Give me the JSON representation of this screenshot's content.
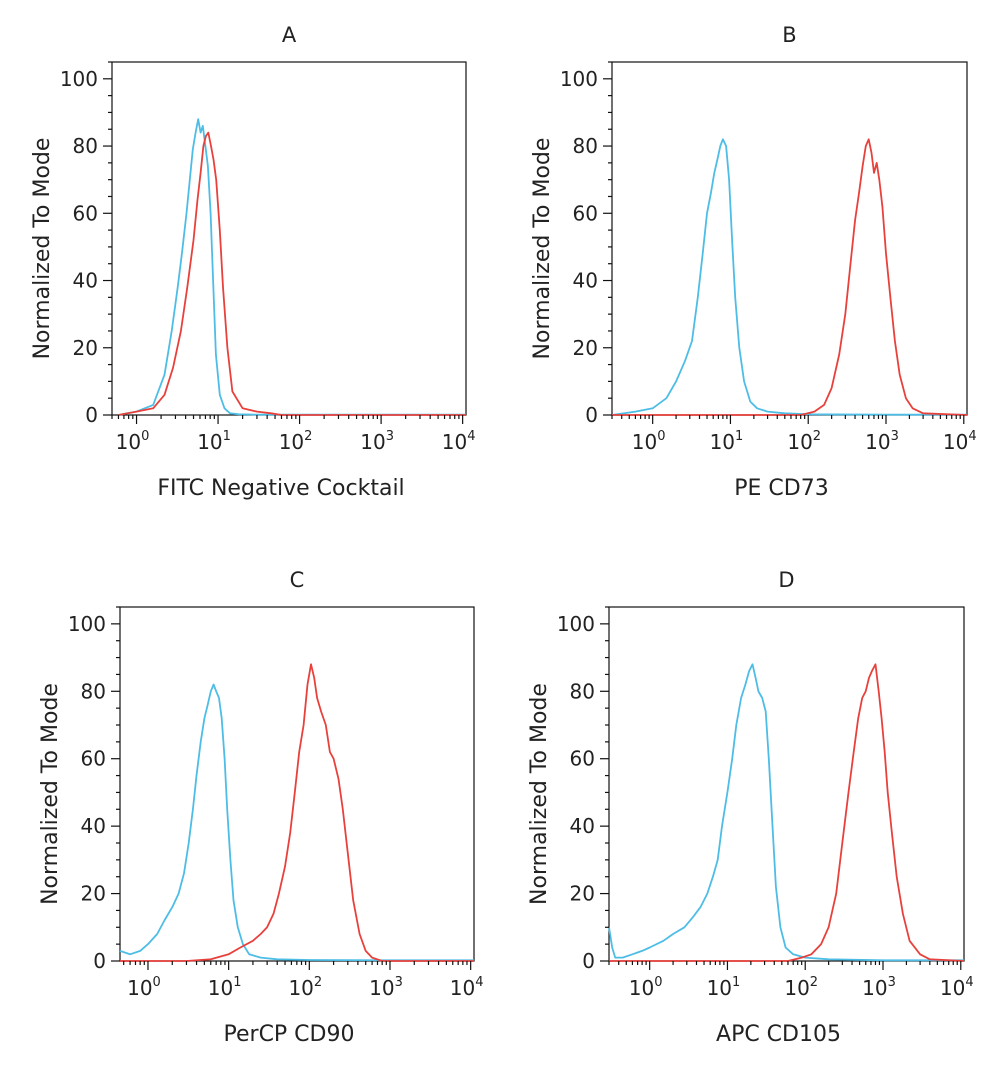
{
  "chart_data": [
    {
      "type": "line",
      "title": "A",
      "xlabel": "FITC Negative Cocktail",
      "ylabel": "Normalized To Mode",
      "xscale": "log",
      "xlim": [
        0.5,
        11000
      ],
      "ylim": [
        0,
        105
      ],
      "xticks": [
        {
          "base": "10",
          "exp": "0",
          "value": 1
        },
        {
          "base": "10",
          "exp": "1",
          "value": 10
        },
        {
          "base": "10",
          "exp": "2",
          "value": 100
        },
        {
          "base": "10",
          "exp": "3",
          "value": 1000
        },
        {
          "base": "10",
          "exp": "4",
          "value": 10000
        }
      ],
      "yticks": [
        0,
        20,
        40,
        60,
        80,
        100
      ],
      "grid": false,
      "series": [
        {
          "color": "#4dbde6",
          "x": [
            0.6,
            1.0,
            1.6,
            2.2,
            2.7,
            3.2,
            3.6,
            4.1,
            4.5,
            4.9,
            5.3,
            5.7,
            6.1,
            6.5,
            7.0,
            7.5,
            8.1,
            8.7,
            9.4,
            10.5,
            12,
            14,
            18,
            30,
            100,
            1000,
            11000
          ],
          "y": [
            0,
            1,
            3,
            12,
            25,
            38,
            48,
            60,
            70,
            79,
            84,
            88,
            84,
            86,
            80,
            74,
            60,
            40,
            18,
            6,
            2,
            0.5,
            0.2,
            0.1,
            0.1,
            0.1,
            0.1
          ]
        },
        {
          "color": "#e8413c",
          "x": [
            0.6,
            1.0,
            1.6,
            2.2,
            2.8,
            3.5,
            4.2,
            5.0,
            5.6,
            6.1,
            6.6,
            7.1,
            7.6,
            8.2,
            8.8,
            9.5,
            10.5,
            11.5,
            13,
            15,
            20,
            30,
            45,
            60,
            100,
            11000
          ],
          "y": [
            0,
            1,
            2,
            6,
            14,
            25,
            38,
            52,
            64,
            72,
            80,
            83,
            84,
            80,
            76,
            70,
            55,
            38,
            20,
            7,
            2,
            1,
            0.5,
            0,
            0,
            0
          ]
        }
      ]
    },
    {
      "type": "line",
      "title": "B",
      "xlabel": "PE CD73",
      "ylabel": "Normalized To Mode",
      "xscale": "log",
      "xlim": [
        0.3,
        11000
      ],
      "ylim": [
        0,
        105
      ],
      "xticks": [
        {
          "base": "10",
          "exp": "0",
          "value": 1
        },
        {
          "base": "10",
          "exp": "1",
          "value": 10
        },
        {
          "base": "10",
          "exp": "2",
          "value": 100
        },
        {
          "base": "10",
          "exp": "3",
          "value": 1000
        },
        {
          "base": "10",
          "exp": "4",
          "value": 10000
        }
      ],
      "yticks": [
        0,
        20,
        40,
        60,
        80,
        100
      ],
      "grid": false,
      "series": [
        {
          "color": "#4dbde6",
          "x": [
            0.3,
            0.6,
            1.0,
            1.5,
            2.0,
            2.6,
            3.2,
            3.8,
            4.4,
            5.0,
            5.6,
            6.2,
            6.8,
            7.4,
            8.0,
            8.8,
            9.6,
            10.5,
            11.5,
            13,
            15,
            18,
            22,
            30,
            50,
            100,
            1000,
            11000
          ],
          "y": [
            0,
            1,
            2,
            5,
            10,
            16,
            22,
            35,
            48,
            60,
            66,
            72,
            76,
            80,
            82,
            80,
            70,
            52,
            35,
            20,
            10,
            4,
            2,
            1,
            0.5,
            0.2,
            0.1,
            0.1
          ]
        },
        {
          "color": "#e8413c",
          "x": [
            0.3,
            1,
            10,
            80,
            120,
            160,
            200,
            250,
            300,
            350,
            400,
            450,
            500,
            550,
            600,
            650,
            700,
            760,
            820,
            900,
            1000,
            1150,
            1300,
            1500,
            1800,
            2200,
            3000,
            11000
          ],
          "y": [
            0,
            0,
            0,
            0,
            1,
            3,
            8,
            18,
            30,
            45,
            58,
            66,
            74,
            80,
            82,
            78,
            72,
            75,
            70,
            62,
            48,
            34,
            22,
            12,
            5,
            2,
            0.5,
            0
          ]
        }
      ]
    },
    {
      "type": "line",
      "title": "C",
      "xlabel": "PerCP CD90",
      "ylabel": "Normalized To Mode",
      "xscale": "log",
      "xlim": [
        0.45,
        11000
      ],
      "ylim": [
        0,
        105
      ],
      "xticks": [
        {
          "base": "10",
          "exp": "0",
          "value": 1
        },
        {
          "base": "10",
          "exp": "1",
          "value": 10
        },
        {
          "base": "10",
          "exp": "2",
          "value": 100
        },
        {
          "base": "10",
          "exp": "3",
          "value": 1000
        },
        {
          "base": "10",
          "exp": "4",
          "value": 10000
        }
      ],
      "yticks": [
        0,
        20,
        40,
        60,
        80,
        100
      ],
      "grid": false,
      "series": [
        {
          "color": "#4dbde6",
          "x": [
            0.45,
            0.6,
            0.8,
            1.0,
            1.3,
            1.6,
            2.0,
            2.4,
            2.8,
            3.2,
            3.6,
            4.0,
            4.5,
            5.0,
            5.5,
            6.0,
            6.5,
            7.0,
            7.6,
            8.2,
            8.9,
            9.6,
            10.5,
            11.5,
            13,
            15,
            18,
            25,
            40,
            100,
            1000,
            11000
          ],
          "y": [
            3,
            2,
            3,
            5,
            8,
            12,
            16,
            20,
            26,
            35,
            45,
            55,
            65,
            72,
            76,
            80,
            82,
            80,
            78,
            72,
            60,
            45,
            30,
            18,
            10,
            5,
            2,
            1,
            0.5,
            0.3,
            0.2,
            0.2
          ]
        },
        {
          "color": "#e8413c",
          "x": [
            0.45,
            1,
            3,
            6,
            10,
            14,
            20,
            25,
            30,
            36,
            42,
            50,
            58,
            66,
            75,
            85,
            95,
            105,
            115,
            125,
            140,
            160,
            180,
            200,
            230,
            260,
            300,
            350,
            420,
            500,
            600,
            800,
            11000
          ],
          "y": [
            0,
            0,
            0,
            0.5,
            2,
            4,
            6,
            8,
            10,
            14,
            20,
            28,
            38,
            50,
            62,
            70,
            82,
            88,
            84,
            78,
            74,
            70,
            62,
            60,
            54,
            45,
            32,
            18,
            8,
            3,
            1,
            0,
            0
          ]
        }
      ]
    },
    {
      "type": "line",
      "title": "D",
      "xlabel": "APC CD105",
      "ylabel": "Normalized To Mode",
      "xscale": "log",
      "xlim": [
        0.3,
        11000
      ],
      "ylim": [
        0,
        105
      ],
      "xticks": [
        {
          "base": "10",
          "exp": "0",
          "value": 1
        },
        {
          "base": "10",
          "exp": "1",
          "value": 10
        },
        {
          "base": "10",
          "exp": "2",
          "value": 100
        },
        {
          "base": "10",
          "exp": "3",
          "value": 1000
        },
        {
          "base": "10",
          "exp": "4",
          "value": 10000
        }
      ],
      "yticks": [
        0,
        20,
        40,
        60,
        80,
        100
      ],
      "grid": false,
      "series": [
        {
          "color": "#4dbde6",
          "x": [
            0.3,
            0.33,
            0.36,
            0.45,
            0.6,
            0.8,
            1.0,
            1.5,
            2.0,
            2.8,
            3.6,
            4.5,
            5.5,
            6.5,
            7.5,
            8.5,
            10,
            11.5,
            13,
            15,
            17,
            19,
            21,
            23,
            25,
            28,
            31,
            34,
            38,
            42,
            48,
            56,
            70,
            100,
            200,
            1000,
            11000
          ],
          "y": [
            10,
            4,
            1,
            1,
            2,
            3,
            4,
            6,
            8,
            10,
            13,
            16,
            20,
            25,
            30,
            40,
            50,
            60,
            70,
            78,
            82,
            86,
            88,
            84,
            80,
            78,
            74,
            60,
            40,
            22,
            10,
            4,
            2,
            1,
            0.5,
            0.2,
            0.2
          ]
        },
        {
          "color": "#e8413c",
          "x": [
            0.3,
            1,
            10,
            60,
            90,
            120,
            160,
            200,
            250,
            300,
            360,
            420,
            480,
            540,
            600,
            660,
            720,
            800,
            880,
            960,
            1050,
            1150,
            1300,
            1500,
            1800,
            2200,
            3000,
            4000,
            11000
          ],
          "y": [
            0,
            0,
            0,
            0,
            1,
            2,
            5,
            10,
            20,
            35,
            50,
            62,
            72,
            78,
            80,
            84,
            86,
            88,
            80,
            72,
            62,
            50,
            38,
            25,
            14,
            6,
            2,
            0.5,
            0
          ]
        }
      ]
    }
  ]
}
